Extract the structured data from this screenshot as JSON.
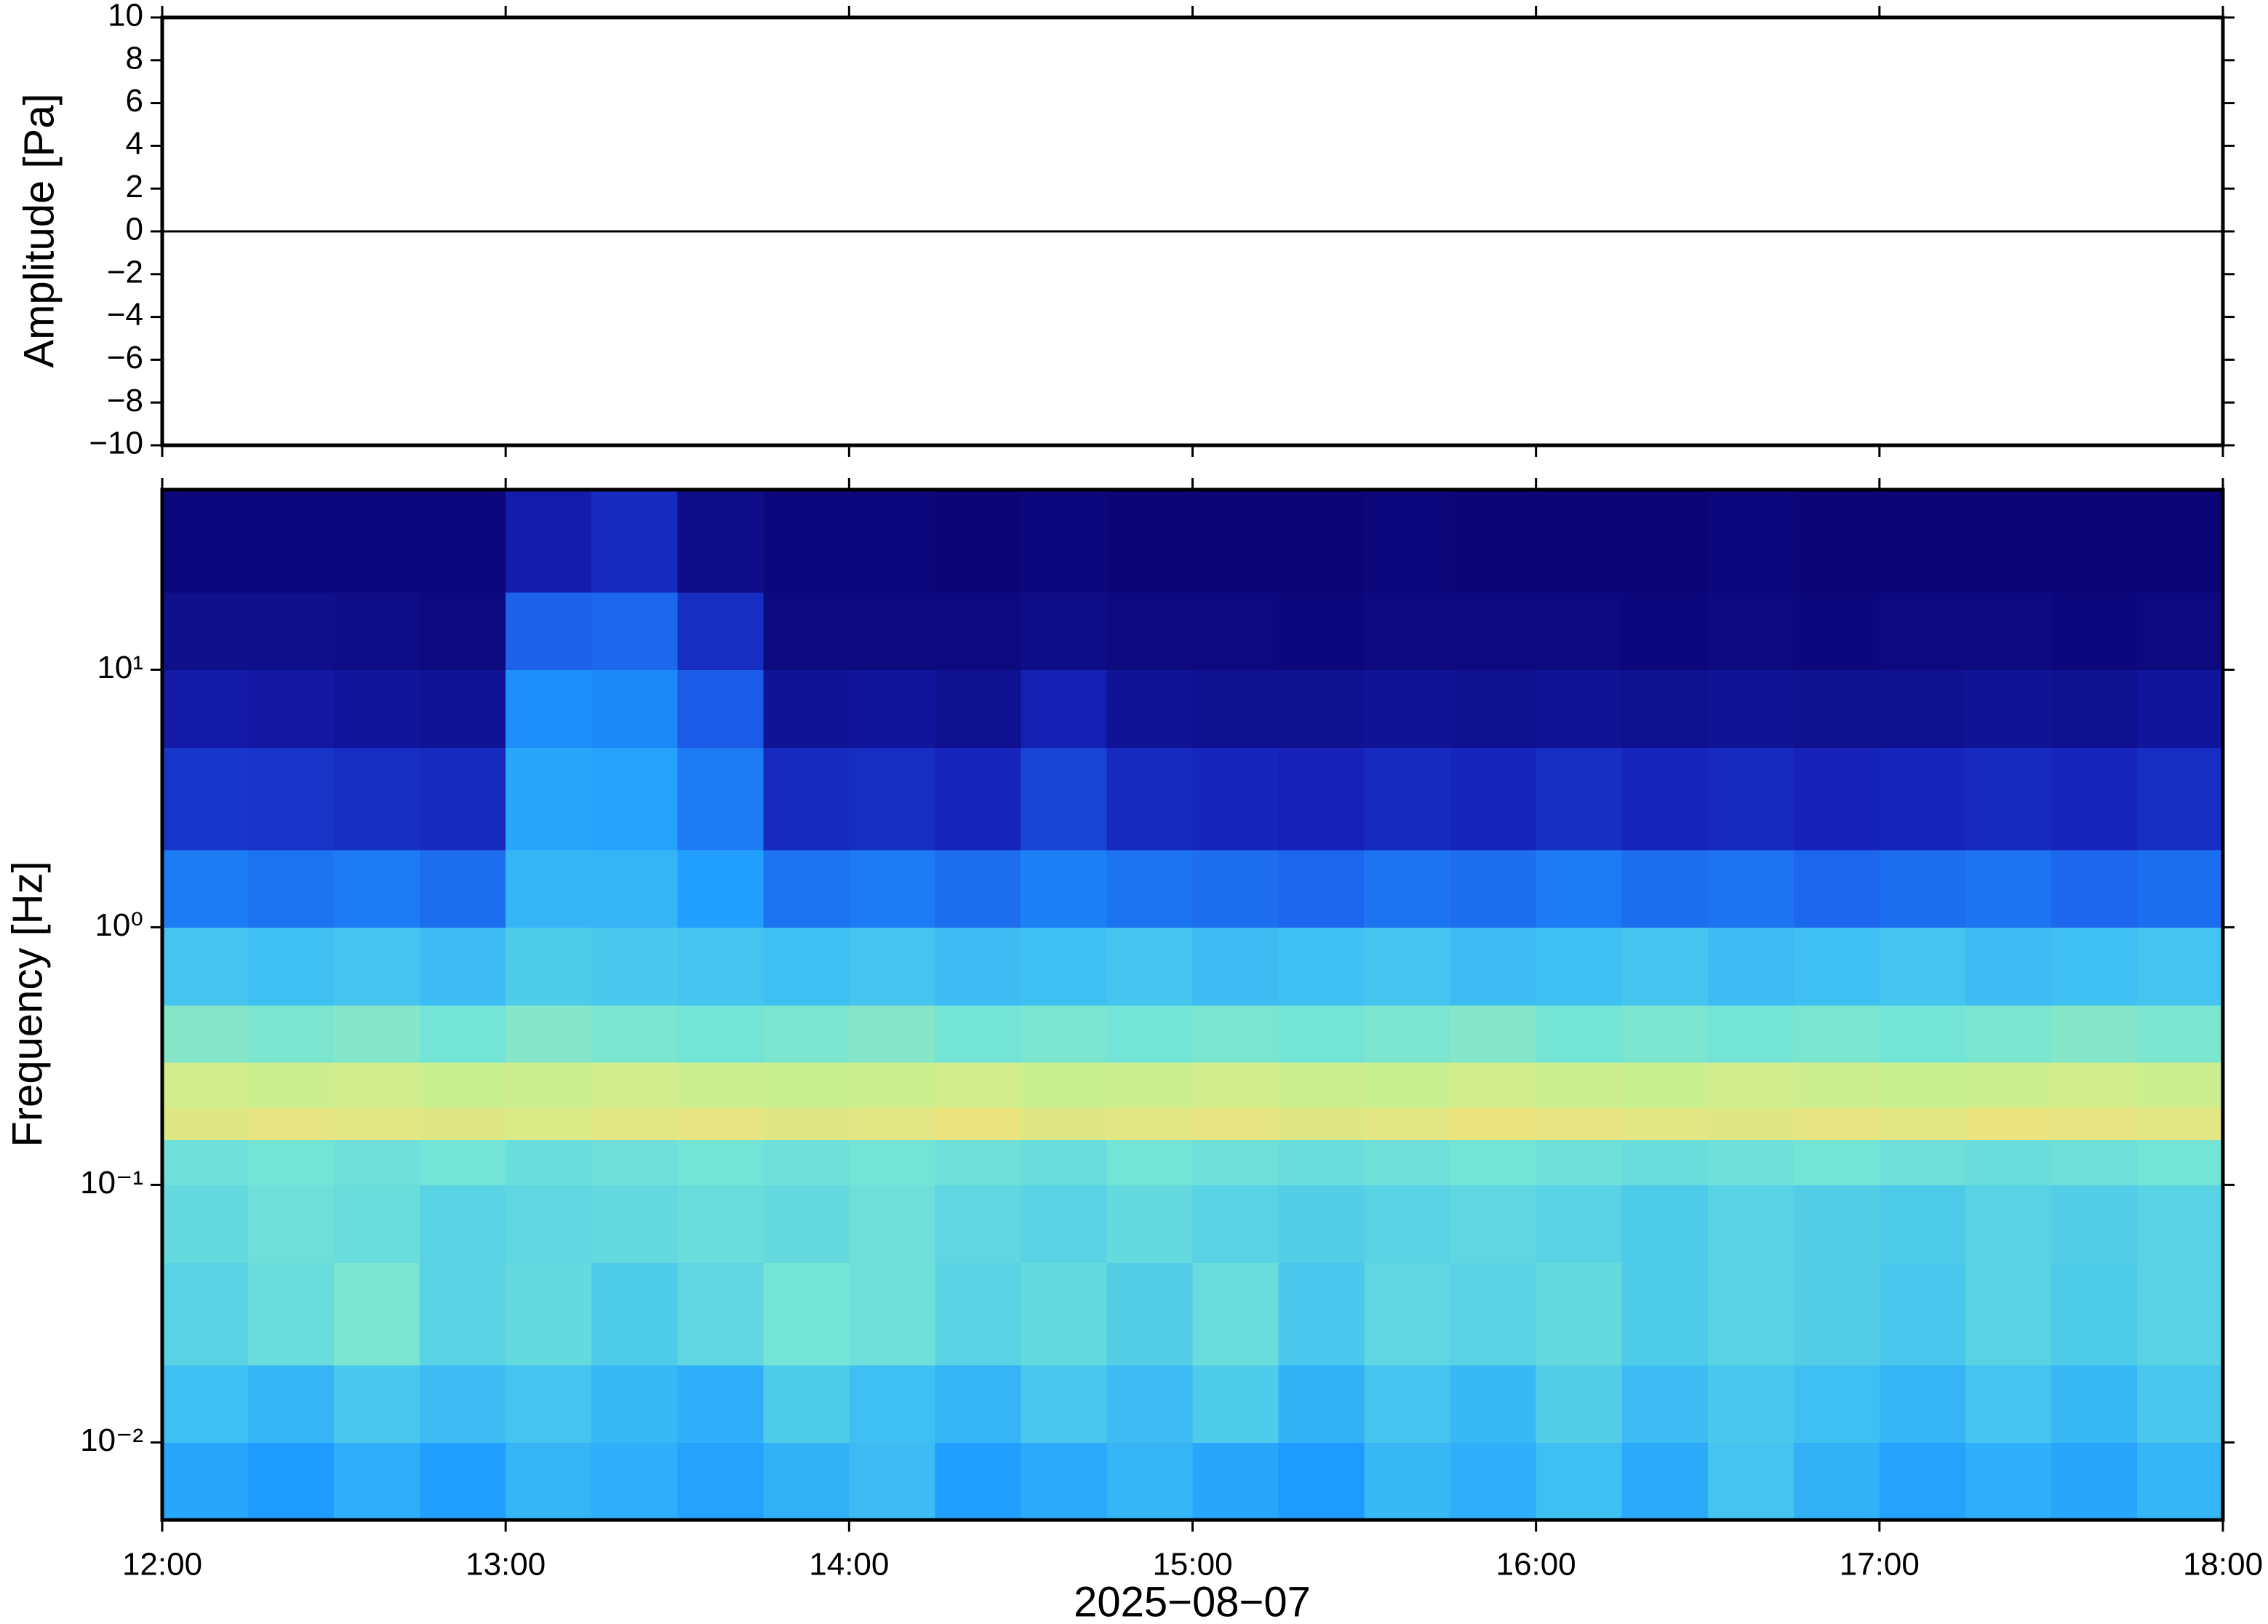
{
  "chart_data": [
    {
      "type": "line",
      "ylabel": "Amplitude [Pa]",
      "color": "#000000",
      "ylim": [
        -10,
        10
      ],
      "yticks": [
        {
          "value": -10,
          "label": "−10"
        },
        {
          "value": -8,
          "label": "−8"
        },
        {
          "value": -6,
          "label": "−6"
        },
        {
          "value": -4,
          "label": "−4"
        },
        {
          "value": -2,
          "label": "−2"
        },
        0,
        2,
        4,
        6,
        8,
        10
      ],
      "x": [
        "12:00",
        "12:30",
        "13:00",
        "13:30",
        "14:00",
        "14:30",
        "15:00",
        "15:30",
        "16:00",
        "16:30",
        "17:00",
        "17:30",
        "18:00"
      ],
      "values": [
        0,
        0,
        0,
        0,
        0,
        0,
        0,
        0,
        0,
        0,
        0,
        0,
        0
      ]
    },
    {
      "type": "heatmap",
      "ylabel": "Frequency [Hz]",
      "xlabel": "2025−08−07",
      "log_y": true,
      "xlim": [
        "12:00",
        "18:00"
      ],
      "xticks": [
        "12:00",
        "13:00",
        "14:00",
        "15:00",
        "16:00",
        "17:00",
        "18:00"
      ],
      "ylim": [
        0.005,
        50
      ],
      "yticks": [
        {
          "value": 0.01,
          "label": "10⁻²"
        },
        {
          "value": 0.1,
          "label": "10⁻¹"
        },
        {
          "value": 1,
          "label": "10⁰"
        },
        {
          "value": 10,
          "label": "10¹"
        }
      ],
      "ybins": [
        0.005,
        0.01,
        0.02,
        0.05,
        0.1,
        0.15,
        0.2,
        0.3,
        0.5,
        1,
        2,
        5,
        10,
        20,
        50
      ],
      "zlim": [
        0,
        1
      ],
      "colorscale": [
        [
          0,
          "#0b0575"
        ],
        [
          0.12,
          "#1621b8"
        ],
        [
          0.25,
          "#1c5ae8"
        ],
        [
          0.35,
          "#1e9bff"
        ],
        [
          0.45,
          "#3fc0f2"
        ],
        [
          0.55,
          "#74e4d6"
        ],
        [
          0.65,
          "#c8f090"
        ],
        [
          0.75,
          "#f3e07a"
        ],
        [
          0.85,
          "#f4a040"
        ],
        [
          1,
          "#c81010"
        ]
      ],
      "z": [
        [
          0.38,
          0.35,
          0.4,
          0.36,
          0.42,
          0.4,
          0.37,
          0.41,
          0.44,
          0.36,
          0.39,
          0.42,
          0.38,
          0.35,
          0.43,
          0.4,
          0.45,
          0.39,
          0.46,
          0.41,
          0.37,
          0.4,
          0.38,
          0.42
        ],
        [
          0.45,
          0.42,
          0.47,
          0.44,
          0.46,
          0.43,
          0.4,
          0.48,
          0.45,
          0.42,
          0.47,
          0.44,
          0.48,
          0.41,
          0.46,
          0.43,
          0.49,
          0.44,
          0.47,
          0.45,
          0.42,
          0.46,
          0.43,
          0.47
        ],
        [
          0.5,
          0.53,
          0.56,
          0.5,
          0.52,
          0.48,
          0.51,
          0.55,
          0.54,
          0.5,
          0.52,
          0.49,
          0.53,
          0.47,
          0.51,
          0.5,
          0.52,
          0.48,
          0.5,
          0.49,
          0.47,
          0.5,
          0.48,
          0.5
        ],
        [
          0.52,
          0.54,
          0.53,
          0.5,
          0.51,
          0.52,
          0.53,
          0.52,
          0.54,
          0.51,
          0.5,
          0.52,
          0.5,
          0.49,
          0.5,
          0.51,
          0.5,
          0.48,
          0.5,
          0.49,
          0.48,
          0.5,
          0.49,
          0.5
        ],
        [
          0.54,
          0.55,
          0.54,
          0.55,
          0.53,
          0.54,
          0.55,
          0.54,
          0.55,
          0.54,
          0.53,
          0.55,
          0.54,
          0.53,
          0.54,
          0.55,
          0.54,
          0.53,
          0.54,
          0.55,
          0.54,
          0.53,
          0.54,
          0.55
        ],
        [
          0.7,
          0.72,
          0.71,
          0.7,
          0.69,
          0.71,
          0.72,
          0.7,
          0.71,
          0.73,
          0.7,
          0.71,
          0.72,
          0.7,
          0.71,
          0.73,
          0.72,
          0.71,
          0.7,
          0.72,
          0.71,
          0.73,
          0.72,
          0.71
        ],
        [
          0.67,
          0.66,
          0.67,
          0.65,
          0.66,
          0.67,
          0.66,
          0.65,
          0.66,
          0.67,
          0.65,
          0.66,
          0.67,
          0.66,
          0.65,
          0.67,
          0.66,
          0.65,
          0.67,
          0.66,
          0.65,
          0.66,
          0.67,
          0.66
        ],
        [
          0.57,
          0.56,
          0.57,
          0.55,
          0.57,
          0.56,
          0.55,
          0.56,
          0.57,
          0.55,
          0.56,
          0.55,
          0.56,
          0.55,
          0.56,
          0.57,
          0.55,
          0.56,
          0.55,
          0.56,
          0.55,
          0.56,
          0.57,
          0.56
        ],
        [
          0.46,
          0.45,
          0.46,
          0.44,
          0.48,
          0.47,
          0.46,
          0.45,
          0.46,
          0.44,
          0.45,
          0.46,
          0.44,
          0.45,
          0.46,
          0.44,
          0.45,
          0.46,
          0.44,
          0.45,
          0.46,
          0.44,
          0.45,
          0.46
        ],
        [
          0.3,
          0.29,
          0.3,
          0.28,
          0.42,
          0.42,
          0.36,
          0.29,
          0.3,
          0.28,
          0.31,
          0.29,
          0.28,
          0.27,
          0.29,
          0.28,
          0.3,
          0.28,
          0.29,
          0.27,
          0.28,
          0.29,
          0.27,
          0.28
        ],
        [
          0.17,
          0.16,
          0.15,
          0.14,
          0.38,
          0.37,
          0.3,
          0.14,
          0.15,
          0.13,
          0.2,
          0.14,
          0.13,
          0.12,
          0.14,
          0.13,
          0.15,
          0.13,
          0.14,
          0.12,
          0.13,
          0.14,
          0.13,
          0.15
        ],
        [
          0.09,
          0.08,
          0.07,
          0.06,
          0.33,
          0.32,
          0.25,
          0.06,
          0.07,
          0.05,
          0.11,
          0.06,
          0.05,
          0.05,
          0.06,
          0.05,
          0.06,
          0.05,
          0.06,
          0.05,
          0.05,
          0.06,
          0.05,
          0.07
        ],
        [
          0.04,
          0.04,
          0.03,
          0.02,
          0.26,
          0.27,
          0.15,
          0.02,
          0.02,
          0.02,
          0.03,
          0.02,
          0.02,
          0.01,
          0.02,
          0.02,
          0.02,
          0.01,
          0.02,
          0.01,
          0.02,
          0.02,
          0.01,
          0.02
        ],
        [
          0.01,
          0.01,
          0.01,
          0.01,
          0.1,
          0.14,
          0.03,
          0.01,
          0.01,
          0,
          0.01,
          0,
          0,
          0,
          0.01,
          0,
          0,
          0,
          0.01,
          0,
          0,
          0,
          0,
          0
        ]
      ]
    }
  ]
}
